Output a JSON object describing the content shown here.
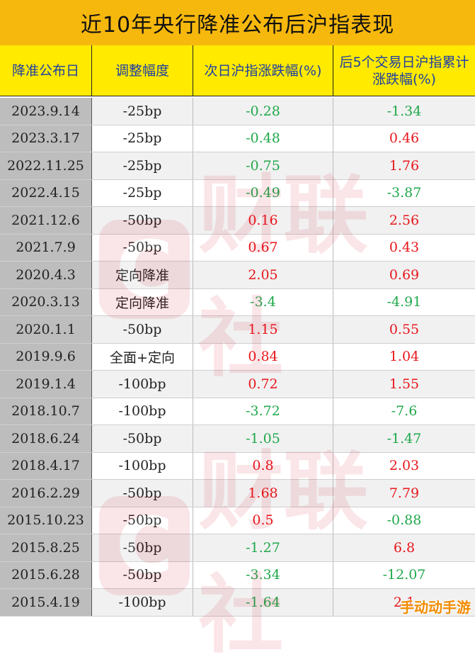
{
  "title": "近10年央行降准公布后沪指表现",
  "headers": [
    "降准公布日",
    "调整幅度",
    "次日沪指涨跌幅(%)",
    "后5个交易日沪指累计涨跌幅(%)"
  ],
  "watermark": {
    "logo_letter": "C",
    "text": "财联社"
  },
  "site_badge": "手动动手游",
  "rows": [
    {
      "date": "2023.9.14",
      "adj": "-25bp",
      "next": "-0.28",
      "five": "-1.34"
    },
    {
      "date": "2023.3.17",
      "adj": "-25bp",
      "next": "-0.48",
      "five": "0.46"
    },
    {
      "date": "2022.11.25",
      "adj": "-25bp",
      "next": "-0.75",
      "five": "1.76"
    },
    {
      "date": "2022.4.15",
      "adj": "-25bp",
      "next": "-0.49",
      "five": "-3.87"
    },
    {
      "date": "2021.12.6",
      "adj": "-50bp",
      "next": "0.16",
      "five": "2.56"
    },
    {
      "date": "2021.7.9",
      "adj": "-50bp",
      "next": "0.67",
      "five": "0.43"
    },
    {
      "date": "2020.4.3",
      "adj": "定向降准",
      "next": "2.05",
      "five": "0.69"
    },
    {
      "date": "2020.3.13",
      "adj": "定向降准",
      "next": "-3.4",
      "five": "-4.91"
    },
    {
      "date": "2020.1.1",
      "adj": "-50bp",
      "next": "1.15",
      "five": "0.55"
    },
    {
      "date": "2019.9.6",
      "adj": "全面+定向",
      "next": "0.84",
      "five": "1.04"
    },
    {
      "date": "2019.1.4",
      "adj": "-100bp",
      "next": "0.72",
      "five": "1.55"
    },
    {
      "date": "2018.10.7",
      "adj": "-100bp",
      "next": "-3.72",
      "five": "-7.6"
    },
    {
      "date": "2018.6.24",
      "adj": "-50bp",
      "next": "-1.05",
      "five": "-1.47"
    },
    {
      "date": "2018.4.17",
      "adj": "-100bp",
      "next": "0.8",
      "five": "2.03"
    },
    {
      "date": "2016.2.29",
      "adj": "-50bp",
      "next": "1.68",
      "five": "7.79"
    },
    {
      "date": "2015.10.23",
      "adj": "-50bp",
      "next": "0.5",
      "five": "-0.88"
    },
    {
      "date": "2015.8.25",
      "adj": "-50bp",
      "next": "-1.27",
      "five": "6.8"
    },
    {
      "date": "2015.6.28",
      "adj": "-50bp",
      "next": "-3.34",
      "five": "-12.07"
    },
    {
      "date": "2015.4.19",
      "adj": "-100bp",
      "next": "-1.64",
      "five": "2.1"
    }
  ]
}
